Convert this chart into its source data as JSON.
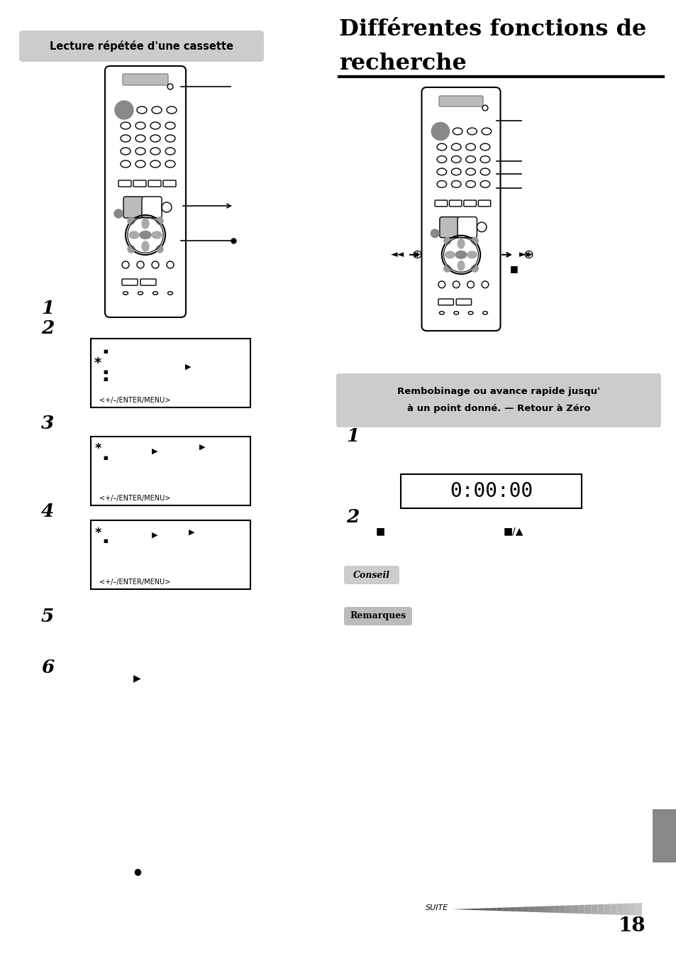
{
  "bg_color": "#ffffff",
  "page_number": "18",
  "left_header": "Lecture répétée d'une cassette",
  "right_title_line1": "Différentes fonctions de",
  "right_title_line2": "recherche",
  "rembobinage_line1": "Rembobinage ou avance rapide jusqu'",
  "rembobinage_line2": "à un point donné. — Retour à Zéro",
  "conseil_label": "Conseil",
  "remarques_label": "Remarques",
  "suite_label": "SUITE",
  "steps_left": [
    "1",
    "2",
    "3",
    "4",
    "5",
    "6"
  ],
  "display_text": "0:00:00"
}
